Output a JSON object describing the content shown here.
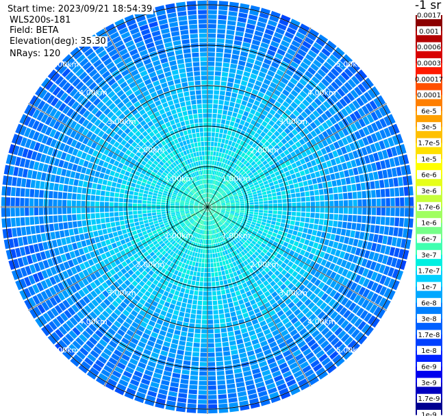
{
  "header": {
    "start_time": "Start time: 2023/09/21 18:54:39",
    "system": "WLS200s-181",
    "field": "Field: BETA",
    "elevation": "Elevation(deg): 35.30",
    "nrays": "NRays: 120"
  },
  "colorbar": {
    "unit": "-1 sr",
    "ticks": [
      "0.0017",
      "0.001",
      "0.0006",
      "0.0003",
      "0.00017",
      "0.0001",
      "6e-5",
      "3e-5",
      "1.7e-5",
      "1e-5",
      "6e-6",
      "3e-6",
      "1.7e-6",
      "1e-6",
      "6e-7",
      "3e-7",
      "1.7e-7",
      "1e-7",
      "6e-8",
      "3e-8",
      "1.7e-8",
      "1e-8",
      "6e-9",
      "3e-9",
      "1.7e-9",
      "1e-9"
    ],
    "colors": [
      "#8b0000",
      "#b40000",
      "#d80000",
      "#ff1a00",
      "#ff5000",
      "#ff7f00",
      "#ffa000",
      "#ffc000",
      "#ffe000",
      "#ffff00",
      "#e6ff1a",
      "#c6ff3a",
      "#a0ff60",
      "#76ff88",
      "#40ffb0",
      "#00f0e0",
      "#00d0ff",
      "#00a8ff",
      "#0080ff",
      "#0060ff",
      "#0040ff",
      "#0020ff",
      "#0000ee",
      "#0000c0",
      "#000090",
      "#000060"
    ]
  },
  "chart_data": {
    "type": "ppi",
    "field": "BETA",
    "nrays": 120,
    "elevation_deg": 35.3,
    "range_rings_km": [
      1,
      2,
      3,
      4,
      5
    ],
    "range_labels": [
      "1.00km",
      "2.00km",
      "3.00km",
      "4.00km",
      "5.00km"
    ],
    "max_range_km": 5.0,
    "radial_profile_log10_beta": [
      {
        "range_km": 0.1,
        "value": -6.3
      },
      {
        "range_km": 1.0,
        "value": -6.7
      },
      {
        "range_km": 1.8,
        "value": -6.85
      },
      {
        "range_km": 2.4,
        "value": -7.0
      },
      {
        "range_km": 3.0,
        "value": -7.15
      },
      {
        "range_km": 3.8,
        "value": -7.4
      },
      {
        "range_km": 4.5,
        "value": -7.6
      },
      {
        "range_km": 5.1,
        "value": -7.7
      }
    ]
  }
}
